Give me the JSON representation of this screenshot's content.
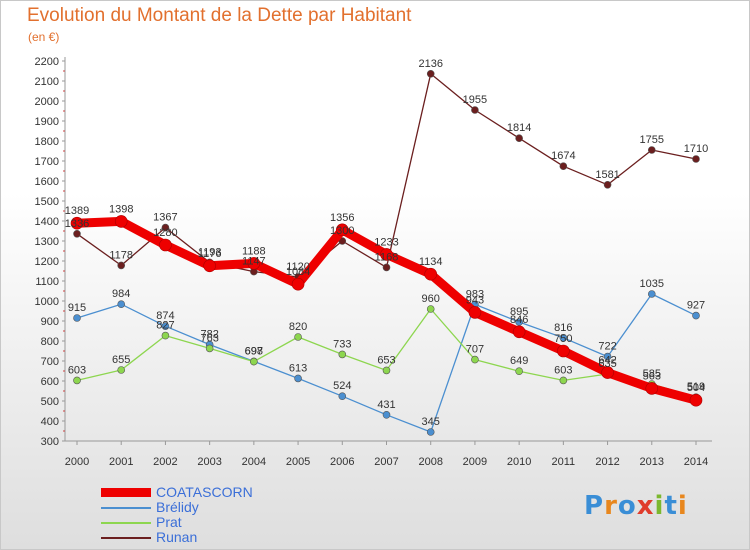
{
  "header": {
    "title": "Evolution du Montant de la Dette par Habitant",
    "subtitle": "(en €)"
  },
  "logo": {
    "text": "Proxiti",
    "letter_colors": [
      "#3a8ed6",
      "#e8871e",
      "#3a8ed6",
      "#e03c2c",
      "#7cb82f",
      "#3a8ed6",
      "#e8871e"
    ]
  },
  "chart_data": {
    "type": "line",
    "title": "Evolution du Montant de la Dette par Habitant",
    "ylabel": "(en €)",
    "xlabel": "",
    "x": [
      "2000",
      "2001",
      "2002",
      "2003",
      "2004",
      "2005",
      "2006",
      "2007",
      "2008",
      "2009",
      "2010",
      "2011",
      "2012",
      "2013",
      "2014"
    ],
    "ylim": [
      300,
      2200
    ],
    "yticks": [
      300,
      400,
      500,
      600,
      700,
      800,
      900,
      1000,
      1100,
      1200,
      1300,
      1400,
      1500,
      1600,
      1700,
      1800,
      1900,
      2000,
      2100,
      2200
    ],
    "grid": false,
    "legend_position": "bottom-left",
    "series": [
      {
        "name": "COATASCORN",
        "color": "#ee0000",
        "values": [
          1389,
          1398,
          1280,
          1176,
          1188,
          1084,
          1356,
          1233,
          1134,
          943,
          846,
          750,
          642,
          563,
          504
        ]
      },
      {
        "name": "Brélidy",
        "color": "#4b8fd0",
        "values": [
          915,
          984,
          874,
          782,
          698,
          613,
          524,
          431,
          345,
          983,
          895,
          816,
          722,
          1035,
          927
        ]
      },
      {
        "name": "Prat",
        "color": "#8dd64f",
        "values": [
          603,
          655,
          827,
          763,
          697,
          820,
          733,
          653,
          960,
          707,
          649,
          603,
          635,
          585,
          519
        ]
      },
      {
        "name": "Runan",
        "color": "#6b1f1f",
        "values": [
          1336,
          1178,
          1367,
          1193,
          1147,
          1120,
          1300,
          1168,
          2136,
          1955,
          1814,
          1674,
          1581,
          1755,
          1710
        ]
      }
    ]
  }
}
